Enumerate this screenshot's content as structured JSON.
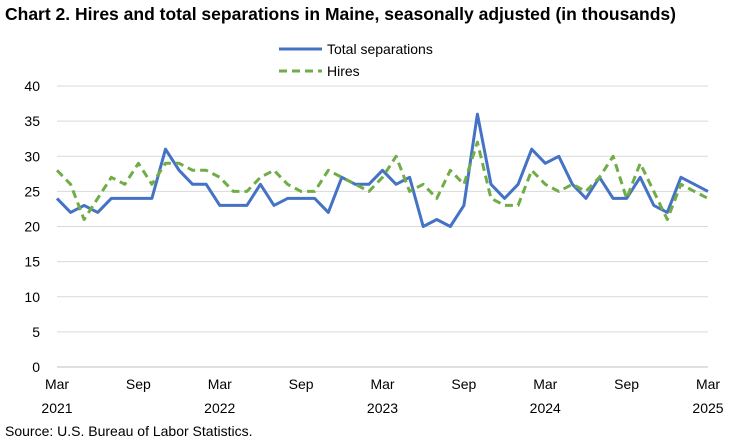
{
  "chart_data": {
    "type": "line",
    "title": "Chart 2. Hires and total separations in Maine, seasonally adjusted (in thousands)",
    "source": "Source: U.S. Bureau of Labor Statistics.",
    "x": [
      "2021-03",
      "2021-04",
      "2021-05",
      "2021-06",
      "2021-07",
      "2021-08",
      "2021-09",
      "2021-10",
      "2021-11",
      "2021-12",
      "2022-01",
      "2022-02",
      "2022-03",
      "2022-04",
      "2022-05",
      "2022-06",
      "2022-07",
      "2022-08",
      "2022-09",
      "2022-10",
      "2022-11",
      "2022-12",
      "2023-01",
      "2023-02",
      "2023-03",
      "2023-04",
      "2023-05",
      "2023-06",
      "2023-07",
      "2023-08",
      "2023-09",
      "2023-10",
      "2023-11",
      "2023-12",
      "2024-01",
      "2024-02",
      "2024-03",
      "2024-04",
      "2024-05",
      "2024-06",
      "2024-07",
      "2024-08",
      "2024-09",
      "2024-10",
      "2024-11",
      "2024-12",
      "2025-01",
      "2025-02",
      "2025-03"
    ],
    "x_ticks": [
      {
        "month": "Mar",
        "year": "2021"
      },
      {
        "month": "Sep",
        "year": ""
      },
      {
        "month": "Mar",
        "year": "2022"
      },
      {
        "month": "Sep",
        "year": ""
      },
      {
        "month": "Mar",
        "year": "2023"
      },
      {
        "month": "Sep",
        "year": ""
      },
      {
        "month": "Mar",
        "year": "2024"
      },
      {
        "month": "Sep",
        "year": ""
      },
      {
        "month": "Mar",
        "year": "2025"
      }
    ],
    "ylim": [
      0,
      40
    ],
    "yticks": [
      "0",
      "5",
      "10",
      "15",
      "20",
      "25",
      "30",
      "35",
      "40"
    ],
    "legend_position": "top-center",
    "grid": "horizontal",
    "series": [
      {
        "name": "Total separations",
        "color": "#4472c4",
        "style": "solid",
        "values": [
          24,
          22,
          23,
          22,
          24,
          24,
          24,
          24,
          31,
          28,
          26,
          26,
          23,
          23,
          23,
          26,
          23,
          24,
          24,
          24,
          22,
          27,
          26,
          26,
          28,
          26,
          27,
          20,
          21,
          20,
          23,
          36,
          26,
          24,
          26,
          31,
          29,
          30,
          26,
          24,
          27,
          24,
          24,
          27,
          23,
          22,
          27,
          26,
          25
        ]
      },
      {
        "name": "Hires",
        "color": "#70ad47",
        "style": "dashed",
        "values": [
          28,
          26,
          21,
          24,
          27,
          26,
          29,
          26,
          29,
          29,
          28,
          28,
          27,
          25,
          25,
          27,
          28,
          26,
          25,
          25,
          28,
          27,
          26,
          25,
          27,
          30,
          25,
          26,
          24,
          28,
          26,
          32,
          24,
          23,
          23,
          28,
          26,
          25,
          26,
          25,
          27,
          30,
          24,
          29,
          25,
          21,
          26,
          25,
          24
        ]
      }
    ]
  }
}
